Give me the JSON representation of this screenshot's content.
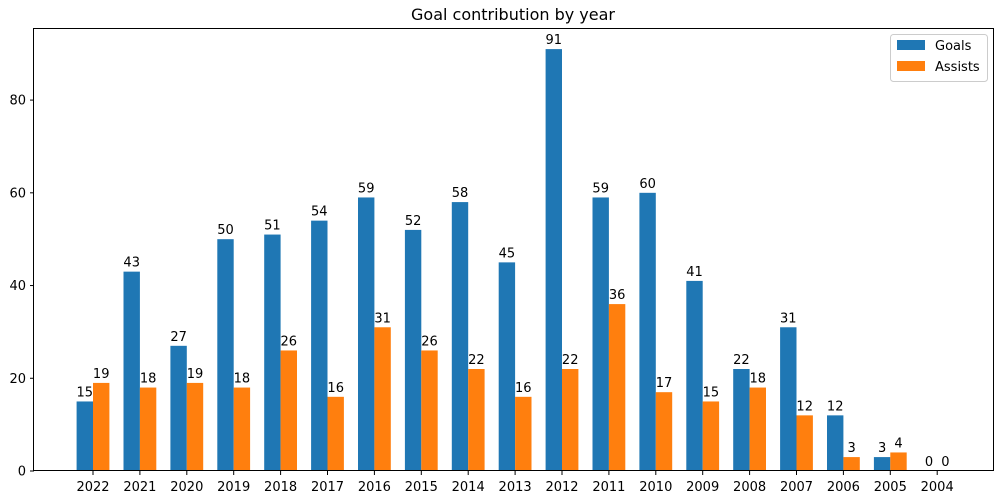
{
  "chart_data": {
    "type": "bar",
    "title": "Goal contribution by year",
    "xlabel": "",
    "ylabel": "",
    "categories": [
      "2022",
      "2021",
      "2020",
      "2019",
      "2018",
      "2017",
      "2016",
      "2015",
      "2014",
      "2013",
      "2012",
      "2011",
      "2010",
      "2009",
      "2008",
      "2007",
      "2006",
      "2005",
      "2004"
    ],
    "series": [
      {
        "name": "Goals",
        "color": "#1f77b4",
        "values": [
          15,
          43,
          27,
          50,
          51,
          54,
          59,
          52,
          58,
          45,
          91,
          59,
          60,
          41,
          22,
          31,
          12,
          3,
          0
        ]
      },
      {
        "name": "Assists",
        "color": "#ff7f0e",
        "values": [
          19,
          18,
          19,
          18,
          26,
          16,
          31,
          26,
          22,
          16,
          22,
          36,
          17,
          15,
          18,
          12,
          3,
          4,
          0
        ]
      }
    ],
    "ylim": [
      0,
      95.55
    ],
    "yticks": [
      0,
      20,
      40,
      60,
      80
    ],
    "grid": false,
    "legend_position": "top-right",
    "data_labels": true
  }
}
